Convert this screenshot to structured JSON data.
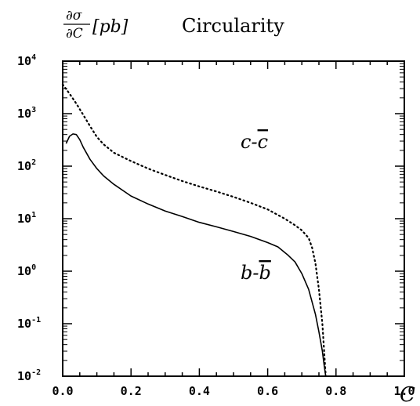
{
  "chart_data": {
    "type": "line",
    "title": "Circularity",
    "ylabel": {
      "main": "∂σ",
      "sub": "∂C",
      "unit": "[pb]"
    },
    "xlabel": "C",
    "xlim": [
      0.0,
      1.0
    ],
    "ylim": [
      0.01,
      10000
    ],
    "y_scale": "log",
    "grid": false,
    "x_ticks": [
      "0.0",
      "0.2",
      "0.4",
      "0.6",
      "0.8",
      "1.0"
    ],
    "y_ticks": [
      {
        "base": "10",
        "exp": "4"
      },
      {
        "base": "10",
        "exp": "3"
      },
      {
        "base": "10",
        "exp": "2"
      },
      {
        "base": "10",
        "exp": "1"
      },
      {
        "base": "10",
        "exp": "0"
      },
      {
        "base": "10",
        "exp": "-1"
      },
      {
        "base": "10",
        "exp": "-2"
      }
    ],
    "series": [
      {
        "name": "c-c̄",
        "label_main": "c-",
        "label_bar": "c",
        "style": "dotted",
        "color": "#000000",
        "x": [
          0.0,
          0.02,
          0.04,
          0.06,
          0.08,
          0.1,
          0.12,
          0.15,
          0.2,
          0.25,
          0.3,
          0.35,
          0.4,
          0.45,
          0.5,
          0.55,
          0.6,
          0.65,
          0.68,
          0.7,
          0.72,
          0.73,
          0.74,
          0.75,
          0.76,
          0.77
        ],
        "y": [
          3600,
          2400,
          1550,
          950,
          580,
          360,
          260,
          180,
          125,
          90,
          68,
          52,
          41,
          33,
          26,
          20,
          15,
          10,
          7.5,
          6,
          4.3,
          2.8,
          1.4,
          0.45,
          0.1,
          0.01
        ]
      },
      {
        "name": "b-b̄",
        "label_main": "b-",
        "label_bar": "b",
        "style": "solid",
        "color": "#000000",
        "x": [
          0.01,
          0.02,
          0.03,
          0.04,
          0.05,
          0.06,
          0.08,
          0.1,
          0.12,
          0.15,
          0.2,
          0.25,
          0.3,
          0.35,
          0.4,
          0.45,
          0.5,
          0.55,
          0.6,
          0.63,
          0.66,
          0.68,
          0.7,
          0.72,
          0.74,
          0.75,
          0.76,
          0.765,
          0.77
        ],
        "y": [
          270,
          370,
          410,
          400,
          320,
          230,
          135,
          90,
          65,
          45,
          27,
          19,
          14,
          11,
          8.5,
          7,
          5.7,
          4.6,
          3.5,
          2.9,
          2.0,
          1.5,
          0.9,
          0.45,
          0.15,
          0.07,
          0.03,
          0.017,
          0.01
        ]
      }
    ]
  }
}
